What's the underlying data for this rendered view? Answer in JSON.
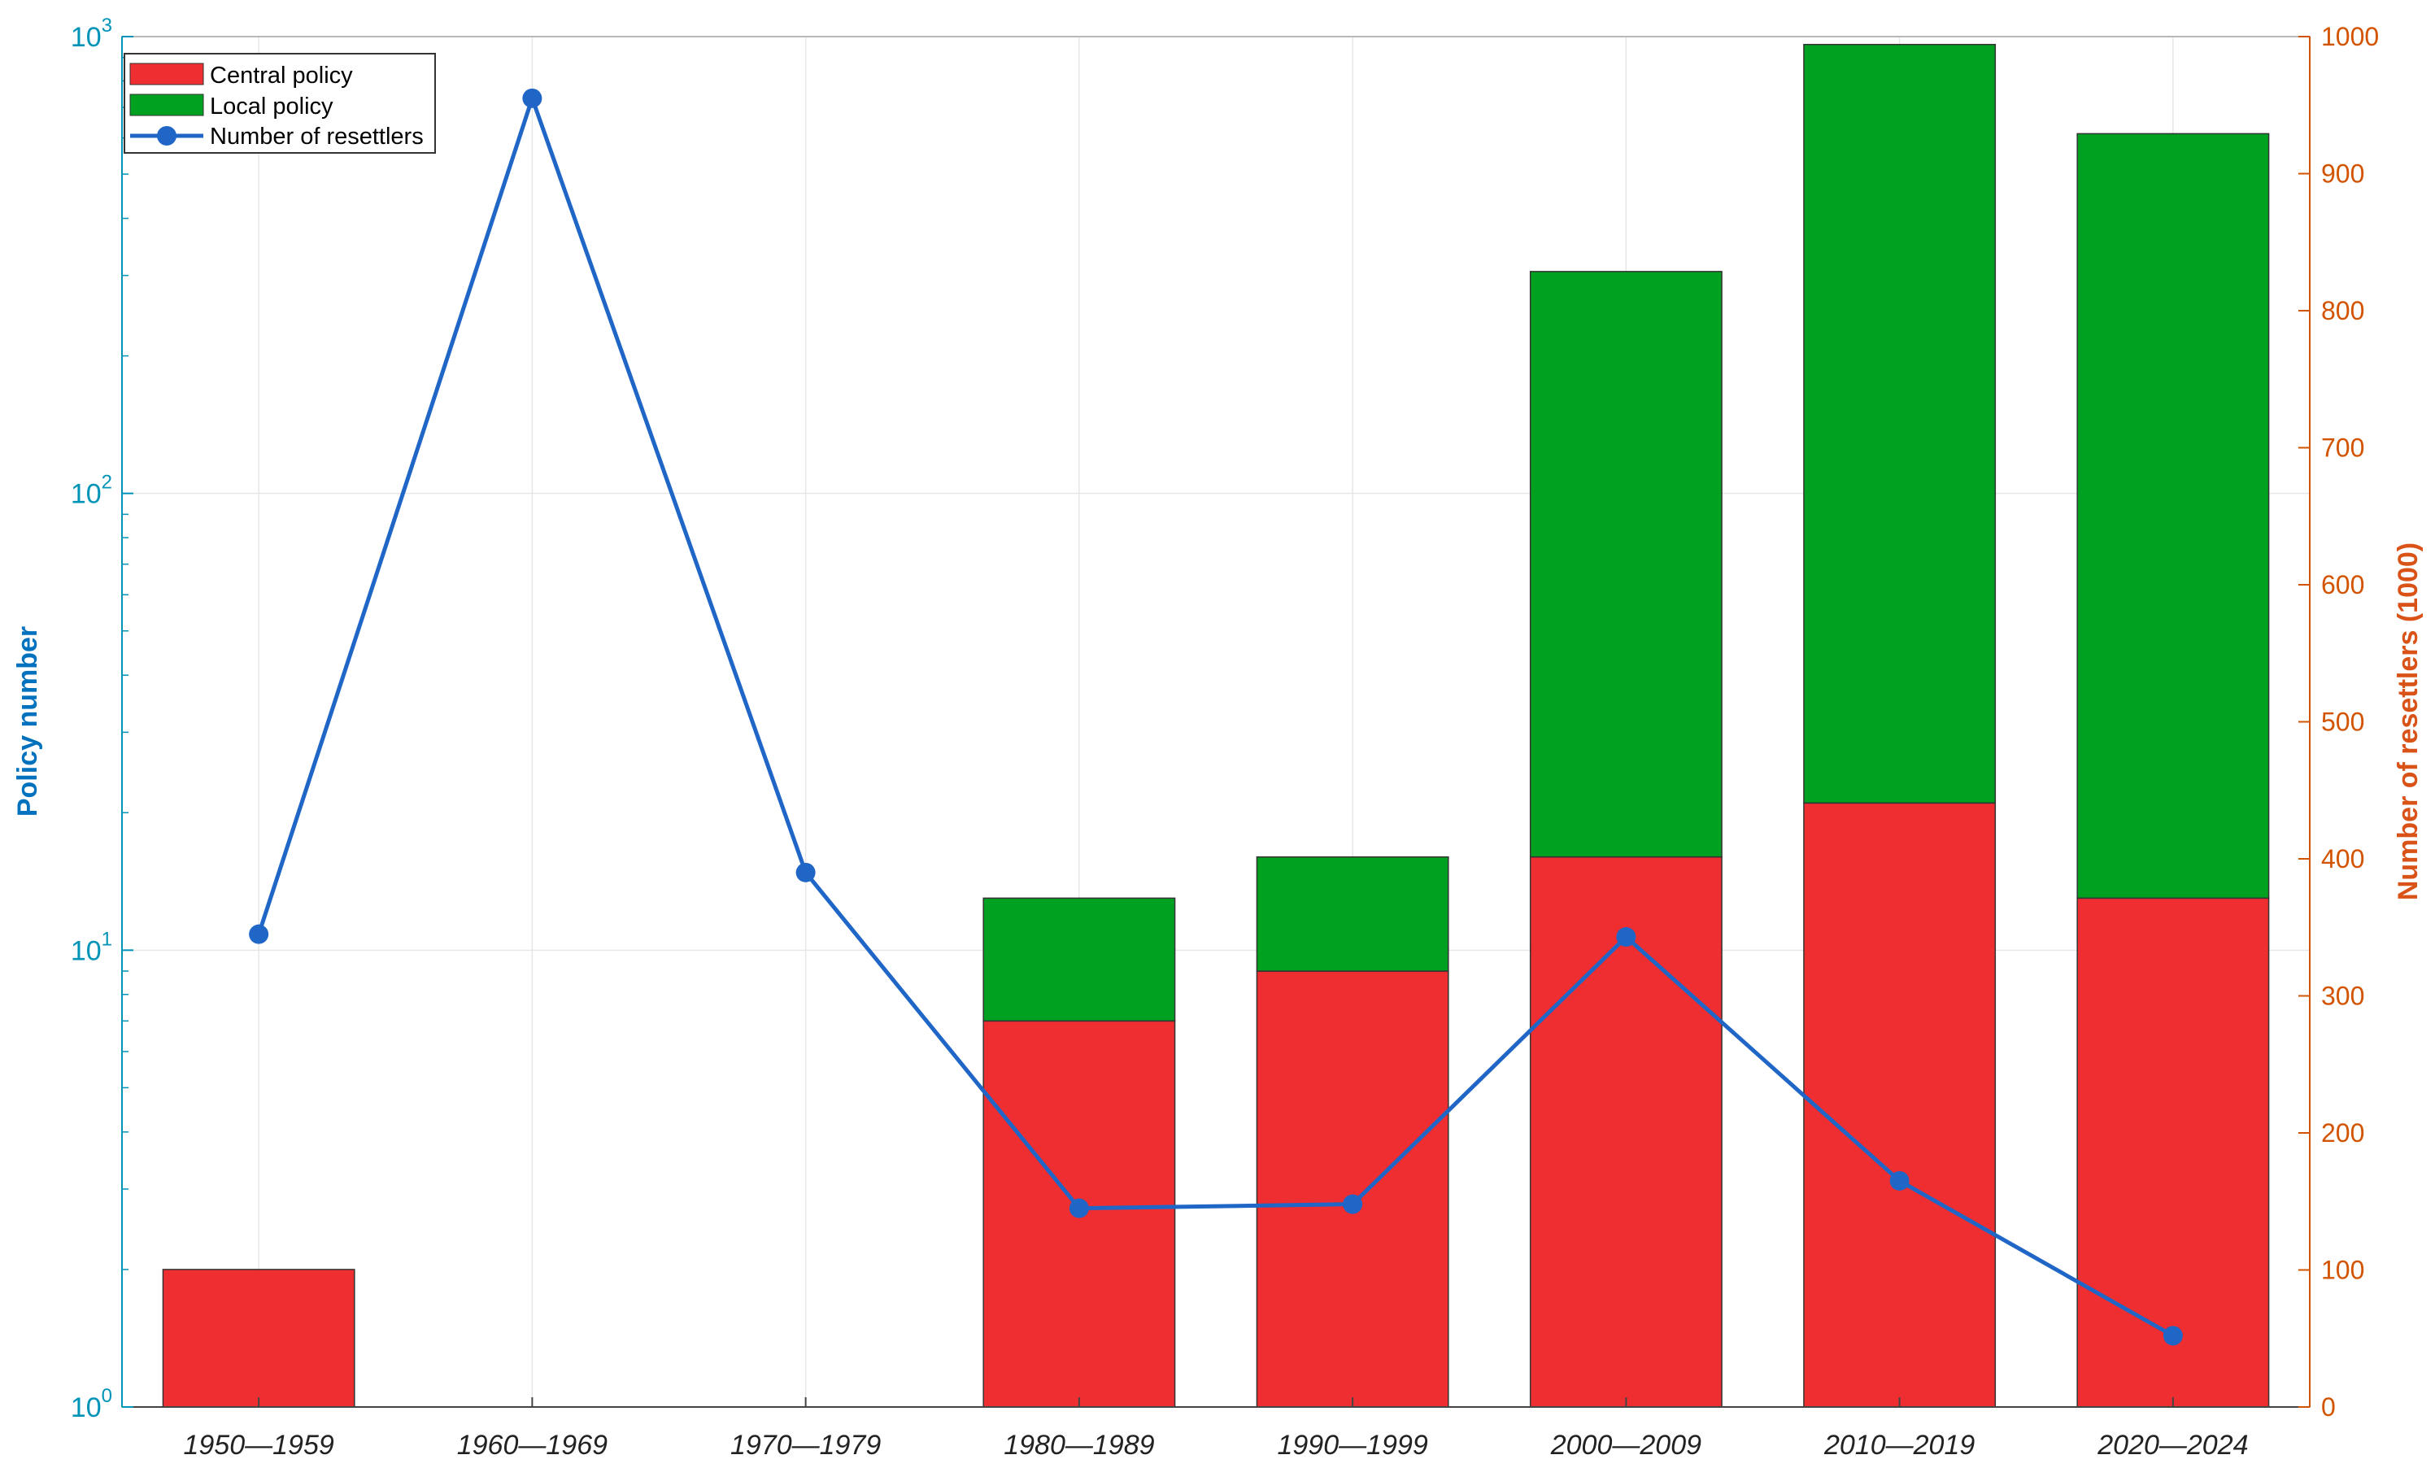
{
  "chart_data": {
    "type": "bar",
    "stacked": true,
    "categories": [
      "1950—1959",
      "1960—1969",
      "1970—1979",
      "1980—1989",
      "1990—1999",
      "2000—2009",
      "2010—2019",
      "2020—2024"
    ],
    "series": [
      {
        "name": "Central policy",
        "axis": "left",
        "kind": "bar",
        "color": "#ee2e31",
        "values": [
          2,
          0,
          0,
          7,
          9,
          16,
          21,
          13
        ]
      },
      {
        "name": "Local policy",
        "axis": "left",
        "kind": "bar",
        "color": "#00a020",
        "values": [
          0,
          0,
          0,
          6,
          7,
          290,
          940,
          600
        ]
      },
      {
        "name": "Number of resettlers",
        "axis": "right",
        "kind": "line",
        "color": "#1f66c7",
        "values": [
          345,
          955,
          390,
          145,
          148,
          343,
          165,
          52
        ]
      }
    ],
    "y_left": {
      "label": "Policy number",
      "scale": "log",
      "range": [
        1,
        1000
      ],
      "ticks": [
        {
          "base": "10",
          "exp": "0"
        },
        {
          "base": "10",
          "exp": "1"
        },
        {
          "base": "10",
          "exp": "2"
        },
        {
          "base": "10",
          "exp": "3"
        }
      ],
      "color": "#0072bd"
    },
    "y_right": {
      "label": "Number of resettlers (1000)",
      "scale": "linear",
      "range": [
        0,
        1000
      ],
      "ticks": [
        "0",
        "100",
        "200",
        "300",
        "400",
        "500",
        "600",
        "700",
        "800",
        "900",
        "1000"
      ],
      "color": "#d95319"
    },
    "grid": true,
    "legend": {
      "position": "top-left",
      "entries": [
        "Central policy",
        "Local policy",
        "Number of resettlers"
      ]
    }
  }
}
